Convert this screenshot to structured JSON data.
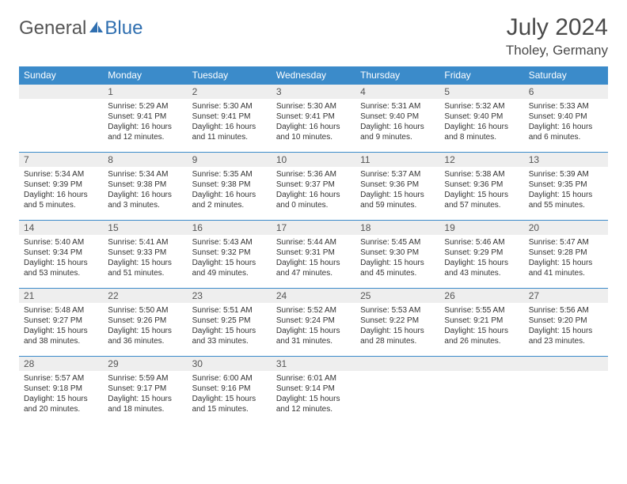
{
  "logo": {
    "part1": "General",
    "part2": "Blue"
  },
  "header": {
    "month": "July 2024",
    "location": "Tholey, Germany"
  },
  "colors": {
    "header_bg": "#3b8bca",
    "header_text": "#ffffff",
    "daynum_bg": "#eeeeee",
    "border": "#3b8bca",
    "text": "#333333",
    "logo_gray": "#555555",
    "logo_blue": "#2f6fb0"
  },
  "weekdays": [
    "Sunday",
    "Monday",
    "Tuesday",
    "Wednesday",
    "Thursday",
    "Friday",
    "Saturday"
  ],
  "weeks": [
    [
      null,
      {
        "n": "1",
        "sr": "Sunrise: 5:29 AM",
        "ss": "Sunset: 9:41 PM",
        "d1": "Daylight: 16 hours",
        "d2": "and 12 minutes."
      },
      {
        "n": "2",
        "sr": "Sunrise: 5:30 AM",
        "ss": "Sunset: 9:41 PM",
        "d1": "Daylight: 16 hours",
        "d2": "and 11 minutes."
      },
      {
        "n": "3",
        "sr": "Sunrise: 5:30 AM",
        "ss": "Sunset: 9:41 PM",
        "d1": "Daylight: 16 hours",
        "d2": "and 10 minutes."
      },
      {
        "n": "4",
        "sr": "Sunrise: 5:31 AM",
        "ss": "Sunset: 9:40 PM",
        "d1": "Daylight: 16 hours",
        "d2": "and 9 minutes."
      },
      {
        "n": "5",
        "sr": "Sunrise: 5:32 AM",
        "ss": "Sunset: 9:40 PM",
        "d1": "Daylight: 16 hours",
        "d2": "and 8 minutes."
      },
      {
        "n": "6",
        "sr": "Sunrise: 5:33 AM",
        "ss": "Sunset: 9:40 PM",
        "d1": "Daylight: 16 hours",
        "d2": "and 6 minutes."
      }
    ],
    [
      {
        "n": "7",
        "sr": "Sunrise: 5:34 AM",
        "ss": "Sunset: 9:39 PM",
        "d1": "Daylight: 16 hours",
        "d2": "and 5 minutes."
      },
      {
        "n": "8",
        "sr": "Sunrise: 5:34 AM",
        "ss": "Sunset: 9:38 PM",
        "d1": "Daylight: 16 hours",
        "d2": "and 3 minutes."
      },
      {
        "n": "9",
        "sr": "Sunrise: 5:35 AM",
        "ss": "Sunset: 9:38 PM",
        "d1": "Daylight: 16 hours",
        "d2": "and 2 minutes."
      },
      {
        "n": "10",
        "sr": "Sunrise: 5:36 AM",
        "ss": "Sunset: 9:37 PM",
        "d1": "Daylight: 16 hours",
        "d2": "and 0 minutes."
      },
      {
        "n": "11",
        "sr": "Sunrise: 5:37 AM",
        "ss": "Sunset: 9:36 PM",
        "d1": "Daylight: 15 hours",
        "d2": "and 59 minutes."
      },
      {
        "n": "12",
        "sr": "Sunrise: 5:38 AM",
        "ss": "Sunset: 9:36 PM",
        "d1": "Daylight: 15 hours",
        "d2": "and 57 minutes."
      },
      {
        "n": "13",
        "sr": "Sunrise: 5:39 AM",
        "ss": "Sunset: 9:35 PM",
        "d1": "Daylight: 15 hours",
        "d2": "and 55 minutes."
      }
    ],
    [
      {
        "n": "14",
        "sr": "Sunrise: 5:40 AM",
        "ss": "Sunset: 9:34 PM",
        "d1": "Daylight: 15 hours",
        "d2": "and 53 minutes."
      },
      {
        "n": "15",
        "sr": "Sunrise: 5:41 AM",
        "ss": "Sunset: 9:33 PM",
        "d1": "Daylight: 15 hours",
        "d2": "and 51 minutes."
      },
      {
        "n": "16",
        "sr": "Sunrise: 5:43 AM",
        "ss": "Sunset: 9:32 PM",
        "d1": "Daylight: 15 hours",
        "d2": "and 49 minutes."
      },
      {
        "n": "17",
        "sr": "Sunrise: 5:44 AM",
        "ss": "Sunset: 9:31 PM",
        "d1": "Daylight: 15 hours",
        "d2": "and 47 minutes."
      },
      {
        "n": "18",
        "sr": "Sunrise: 5:45 AM",
        "ss": "Sunset: 9:30 PM",
        "d1": "Daylight: 15 hours",
        "d2": "and 45 minutes."
      },
      {
        "n": "19",
        "sr": "Sunrise: 5:46 AM",
        "ss": "Sunset: 9:29 PM",
        "d1": "Daylight: 15 hours",
        "d2": "and 43 minutes."
      },
      {
        "n": "20",
        "sr": "Sunrise: 5:47 AM",
        "ss": "Sunset: 9:28 PM",
        "d1": "Daylight: 15 hours",
        "d2": "and 41 minutes."
      }
    ],
    [
      {
        "n": "21",
        "sr": "Sunrise: 5:48 AM",
        "ss": "Sunset: 9:27 PM",
        "d1": "Daylight: 15 hours",
        "d2": "and 38 minutes."
      },
      {
        "n": "22",
        "sr": "Sunrise: 5:50 AM",
        "ss": "Sunset: 9:26 PM",
        "d1": "Daylight: 15 hours",
        "d2": "and 36 minutes."
      },
      {
        "n": "23",
        "sr": "Sunrise: 5:51 AM",
        "ss": "Sunset: 9:25 PM",
        "d1": "Daylight: 15 hours",
        "d2": "and 33 minutes."
      },
      {
        "n": "24",
        "sr": "Sunrise: 5:52 AM",
        "ss": "Sunset: 9:24 PM",
        "d1": "Daylight: 15 hours",
        "d2": "and 31 minutes."
      },
      {
        "n": "25",
        "sr": "Sunrise: 5:53 AM",
        "ss": "Sunset: 9:22 PM",
        "d1": "Daylight: 15 hours",
        "d2": "and 28 minutes."
      },
      {
        "n": "26",
        "sr": "Sunrise: 5:55 AM",
        "ss": "Sunset: 9:21 PM",
        "d1": "Daylight: 15 hours",
        "d2": "and 26 minutes."
      },
      {
        "n": "27",
        "sr": "Sunrise: 5:56 AM",
        "ss": "Sunset: 9:20 PM",
        "d1": "Daylight: 15 hours",
        "d2": "and 23 minutes."
      }
    ],
    [
      {
        "n": "28",
        "sr": "Sunrise: 5:57 AM",
        "ss": "Sunset: 9:18 PM",
        "d1": "Daylight: 15 hours",
        "d2": "and 20 minutes."
      },
      {
        "n": "29",
        "sr": "Sunrise: 5:59 AM",
        "ss": "Sunset: 9:17 PM",
        "d1": "Daylight: 15 hours",
        "d2": "and 18 minutes."
      },
      {
        "n": "30",
        "sr": "Sunrise: 6:00 AM",
        "ss": "Sunset: 9:16 PM",
        "d1": "Daylight: 15 hours",
        "d2": "and 15 minutes."
      },
      {
        "n": "31",
        "sr": "Sunrise: 6:01 AM",
        "ss": "Sunset: 9:14 PM",
        "d1": "Daylight: 15 hours",
        "d2": "and 12 minutes."
      },
      null,
      null,
      null
    ]
  ]
}
